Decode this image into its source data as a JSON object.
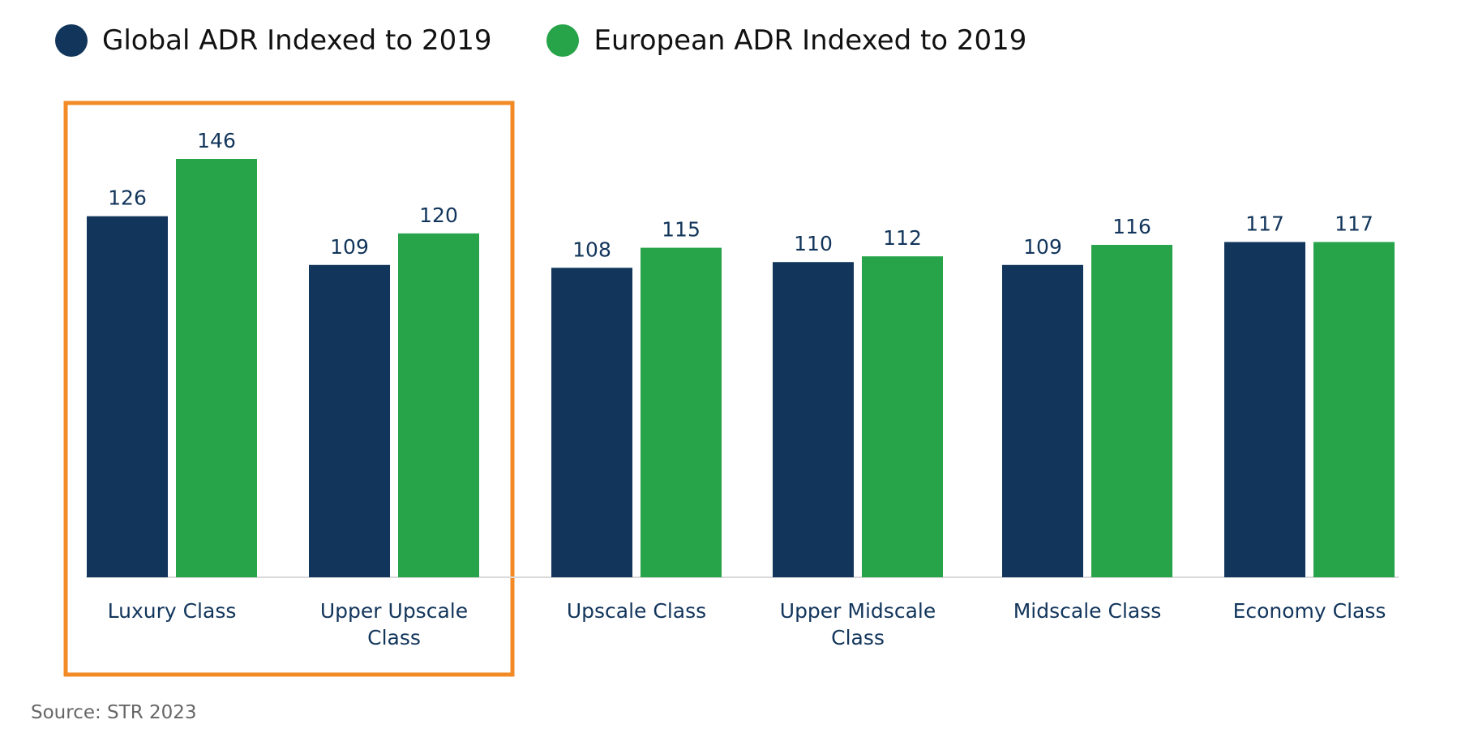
{
  "chart_data": {
    "type": "bar",
    "categories": [
      "Luxury Class",
      "Upper Upscale\nClass",
      "Upscale Class",
      "Upper Midscale\nClass",
      "Midscale Class",
      "Economy Class"
    ],
    "series": [
      {
        "name": "Global ADR Indexed to 2019",
        "values": [
          126,
          109,
          108,
          110,
          109,
          117
        ],
        "color": "#12355b"
      },
      {
        "name": "European ADR Indexed to 2019",
        "values": [
          146,
          120,
          115,
          112,
          116,
          117
        ],
        "color": "#27a34a"
      }
    ],
    "ylim": [
      0,
      146
    ],
    "grid": false,
    "legend_position": "top-left",
    "highlight": {
      "categories": [
        "Luxury Class",
        "Upper Upscale\nClass"
      ],
      "color": "#f28a25"
    }
  },
  "source": "Source: STR 2023"
}
